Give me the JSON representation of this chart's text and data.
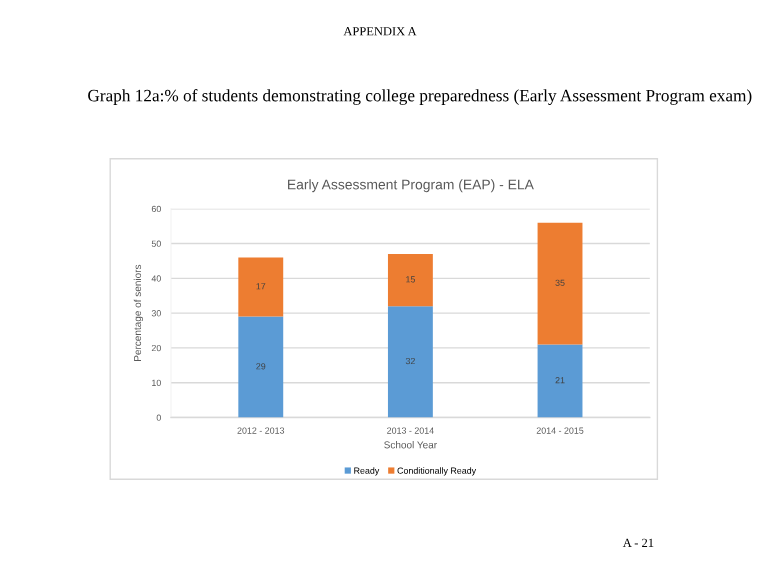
{
  "chart_data": {
    "type": "bar",
    "title": "Early Assessment Program (EAP) - ELA",
    "xlabel": "School Year",
    "ylabel": "Percentage of seniors",
    "annotations": [
      "APPENDIX A",
      "Graph 12a:% of students demonstrating college preparedness (Early Assessment Program exam)",
      "A - 21"
    ],
    "categories": [
      "2012 - 2013",
      "2013 - 2014",
      "2014 - 2015"
    ],
    "series": [
      {
        "name": "Ready",
        "color": "#5b9bd5",
        "values": [
          29,
          32,
          21
        ]
      },
      {
        "name": "Conditionally Ready",
        "color": "#ed7d31",
        "values": [
          17,
          15,
          35
        ]
      }
    ],
    "stacked": true,
    "data_labels": true,
    "ylim": [
      0,
      60
    ],
    "yticks": [
      0,
      10,
      20,
      30,
      40,
      50,
      60
    ],
    "grid": "y",
    "legend": "bottom"
  }
}
